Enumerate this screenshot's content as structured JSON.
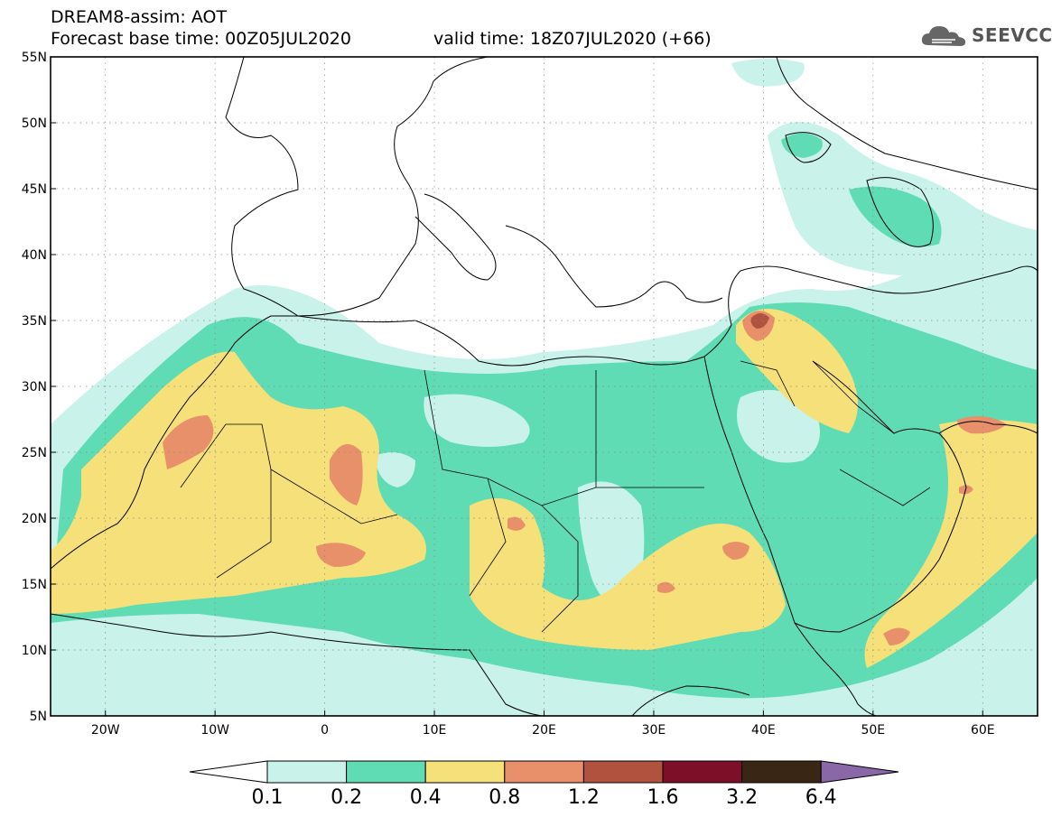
{
  "header": {
    "title": "DREAM8-assim: AOT",
    "base_time": "Forecast base time: 00Z05JUL2020",
    "valid_time": "valid time: 18Z07JUL2020 (+66)",
    "logo_text": "SEEVCCC"
  },
  "map": {
    "lon_range": [
      -25,
      65
    ],
    "lat_range": [
      5,
      55
    ],
    "lat_labels": [
      "55N",
      "50N",
      "45N",
      "40N",
      "35N",
      "30N",
      "25N",
      "20N",
      "15N",
      "10N",
      "5N"
    ],
    "lat_values": [
      55,
      50,
      45,
      40,
      35,
      30,
      25,
      20,
      15,
      10,
      5
    ],
    "lon_labels": [
      "20W",
      "10W",
      "0",
      "10E",
      "20E",
      "30E",
      "40E",
      "50E",
      "60E"
    ],
    "lon_values": [
      -20,
      -10,
      0,
      10,
      20,
      30,
      40,
      50,
      60
    ],
    "grid": true
  },
  "legend": {
    "levels": [
      "0.1",
      "0.2",
      "0.4",
      "0.8",
      "1.2",
      "1.6",
      "3.2",
      "6.4"
    ],
    "colors": [
      "#c8f2ea",
      "#5fdcb4",
      "#f5e07a",
      "#e8906a",
      "#b0523e",
      "#7d0f28",
      "#3a2614",
      "#8a68a8"
    ],
    "under_color": "#ffffff"
  }
}
